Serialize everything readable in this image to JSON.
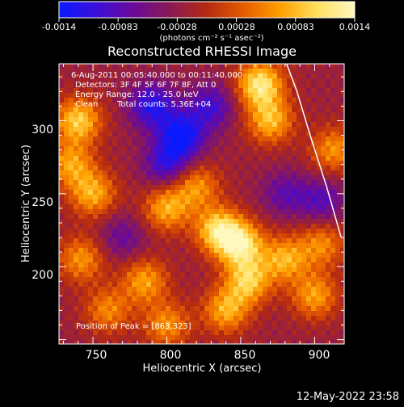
{
  "colorbar": {
    "tick_labels": [
      "-0.0014",
      "-0.00083",
      "-0.00028",
      "0.00028",
      "0.00083",
      "0.0014"
    ],
    "unit_label": "(photons cm⁻² s⁻¹ asec⁻²)",
    "range": [
      -0.0014,
      0.0014
    ],
    "colors": [
      "#0a1aff",
      "#3a0fd8",
      "#6a0a9a",
      "#8a1a55",
      "#b42a12",
      "#e65c00",
      "#ffa000",
      "#ffe060",
      "#fff8c0"
    ]
  },
  "annotations": {
    "time": "6-Aug-2011 00:05:40.000 to 00:11:40.000",
    "detectors": "Detectors: 3F 4F 5F 6F 7F 8F, Att 0",
    "energy": "Energy Range: 12.0 - 25.0 keV",
    "clean": "Clean",
    "counts": "Total counts: 5.36E+04",
    "peak": "Position of Peak = [863,323]"
  },
  "footer_date": "12-May-2022 23:58",
  "chart_data": {
    "type": "heatmap",
    "title": "Reconstructed RHESSI Image",
    "xlabel": "Heliocentric X (arcsec)",
    "ylabel": "Heliocentric Y (arcsec)",
    "xlim": [
      727,
      920
    ],
    "ylim": [
      147,
      339
    ],
    "xticks": [
      750,
      800,
      850,
      900
    ],
    "yticks": [
      200,
      250,
      300
    ],
    "peak": [
      863,
      323
    ],
    "limb_curve": {
      "x": [
        881,
        888,
        897,
        908,
        918
      ],
      "y": [
        339,
        320,
        290,
        255,
        220
      ]
    },
    "blobs": [
      {
        "x": 863,
        "y": 325,
        "value": 1.0
      },
      {
        "x": 870,
        "y": 300,
        "value": 0.75
      },
      {
        "x": 740,
        "y": 300,
        "value": 0.85
      },
      {
        "x": 735,
        "y": 270,
        "value": 0.65
      },
      {
        "x": 750,
        "y": 250,
        "value": 0.7
      },
      {
        "x": 742,
        "y": 205,
        "value": 0.6
      },
      {
        "x": 785,
        "y": 190,
        "value": 0.65
      },
      {
        "x": 760,
        "y": 170,
        "value": 0.55
      },
      {
        "x": 800,
        "y": 240,
        "value": 0.7
      },
      {
        "x": 820,
        "y": 255,
        "value": 0.6
      },
      {
        "x": 835,
        "y": 225,
        "value": 0.9
      },
      {
        "x": 850,
        "y": 215,
        "value": 0.95
      },
      {
        "x": 855,
        "y": 190,
        "value": 0.8
      },
      {
        "x": 840,
        "y": 170,
        "value": 0.7
      },
      {
        "x": 880,
        "y": 205,
        "value": 0.7
      },
      {
        "x": 900,
        "y": 180,
        "value": 0.65
      },
      {
        "x": 913,
        "y": 280,
        "value": 0.6
      },
      {
        "x": 905,
        "y": 215,
        "value": 0.55
      },
      {
        "x": 800,
        "y": 160,
        "value": 0.6
      },
      {
        "x": 790,
        "y": 310,
        "value": -0.7
      },
      {
        "x": 810,
        "y": 290,
        "value": -0.85
      },
      {
        "x": 800,
        "y": 270,
        "value": -0.6
      },
      {
        "x": 830,
        "y": 310,
        "value": -0.55
      },
      {
        "x": 905,
        "y": 245,
        "value": -0.45
      },
      {
        "x": 770,
        "y": 220,
        "value": -0.35
      },
      {
        "x": 880,
        "y": 250,
        "value": -0.4
      }
    ]
  }
}
